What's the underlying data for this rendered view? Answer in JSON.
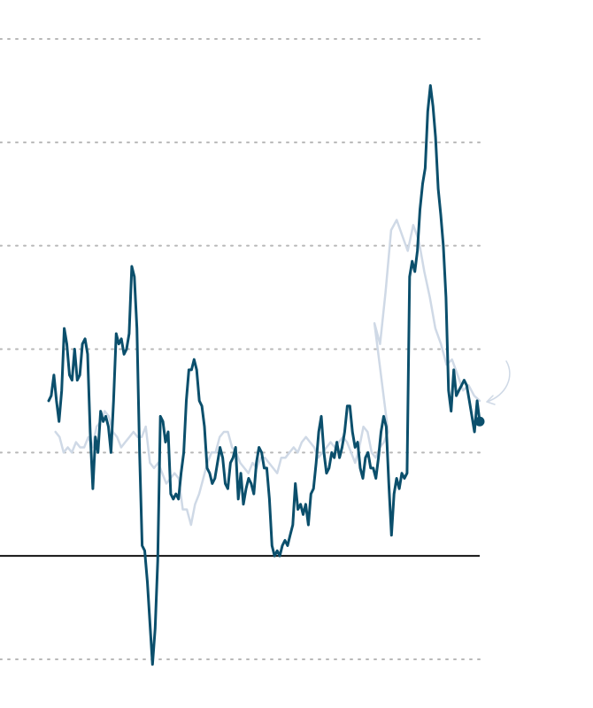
{
  "chart_data": {
    "type": "line",
    "title": "",
    "xlabel": "",
    "ylabel": "",
    "ylim": [
      -1,
      5
    ],
    "xlim": [
      0,
      254
    ],
    "gridlines": [
      -1,
      1,
      2,
      3,
      4,
      5
    ],
    "baseline_value": 0,
    "grid": true,
    "legend": "none",
    "colors": {
      "primary": "#0b4f6c",
      "secondary": "#cfd9e6",
      "baseline": "#111111",
      "grid": "#b8b8b8"
    },
    "series": [
      {
        "role": "primary",
        "values": [
          1.5,
          1.55,
          1.75,
          1.5,
          1.3,
          1.6,
          2.2,
          2.05,
          1.75,
          1.7,
          2.0,
          1.7,
          1.75,
          2.05,
          2.1,
          1.95,
          1.2,
          0.65,
          1.15,
          1.0,
          1.4,
          1.3,
          1.35,
          1.25,
          1.0,
          1.5,
          2.15,
          2.05,
          2.1,
          1.95,
          2.0,
          2.15,
          2.8,
          2.7,
          2.2,
          1.0,
          0.1,
          0.05,
          -0.25,
          -0.65,
          -1.05,
          -0.7,
          -0.05,
          1.35,
          1.3,
          1.1,
          1.2,
          0.6,
          0.55,
          0.6,
          0.55,
          0.8,
          1.0,
          1.5,
          1.8,
          1.8,
          1.9,
          1.8,
          1.5,
          1.45,
          1.25,
          0.85,
          0.8,
          0.7,
          0.75,
          0.9,
          1.05,
          0.95,
          0.7,
          0.65,
          0.9,
          0.95,
          1.05,
          0.55,
          0.8,
          0.5,
          0.65,
          0.75,
          0.7,
          0.6,
          0.9,
          1.05,
          1.0,
          0.85,
          0.85,
          0.55,
          0.1,
          0.0,
          0.05,
          0.0,
          0.1,
          0.15,
          0.1,
          0.2,
          0.3,
          0.7,
          0.45,
          0.5,
          0.4,
          0.5,
          0.3,
          0.6,
          0.65,
          0.9,
          1.2,
          1.35,
          1.0,
          0.8,
          0.85,
          1.0,
          0.95,
          1.1,
          0.95,
          1.05,
          1.2,
          1.45,
          1.45,
          1.2,
          1.05,
          1.1,
          0.85,
          0.75,
          0.95,
          1.0,
          0.85,
          0.85,
          0.75,
          0.95,
          1.2,
          1.35,
          1.25,
          0.7,
          0.2,
          0.6,
          0.75,
          0.65,
          0.8,
          0.75,
          0.8,
          2.7,
          2.85,
          2.75,
          2.95,
          3.35,
          3.6,
          3.75,
          4.3,
          4.55,
          4.35,
          4.05,
          3.55,
          3.3,
          3.0,
          2.5,
          1.6,
          1.4,
          1.8,
          1.55,
          1.6,
          1.65,
          1.7,
          1.65,
          1.5,
          1.35,
          1.2,
          1.5,
          1.3
        ],
        "end_marker": true
      },
      {
        "role": "secondary",
        "values": [
          1.2,
          1.15,
          1.0,
          1.05,
          1.0,
          1.1,
          1.05,
          1.05,
          1.15,
          1.05,
          1.25,
          1.3,
          1.4,
          1.35,
          1.2,
          1.15,
          1.05,
          1.1,
          1.15,
          1.2,
          1.15,
          1.15,
          1.25,
          0.9,
          0.85,
          0.9,
          0.8,
          0.7,
          0.75,
          0.8,
          0.75,
          0.45,
          0.45,
          0.3,
          0.5,
          0.6,
          0.75,
          0.9,
          1.0,
          1.0,
          1.15,
          1.2,
          1.2,
          1.05,
          1.0,
          0.9,
          0.85,
          0.8,
          0.9,
          0.85,
          0.95,
          0.95,
          0.9,
          0.85,
          0.8,
          0.95,
          0.95,
          1.0,
          1.05,
          1.0,
          1.1,
          1.15,
          1.1,
          1.05,
          0.95,
          1.0,
          1.05,
          1.1,
          1.05,
          1.1,
          1.15,
          1.1,
          1.0,
          0.9,
          1.05,
          1.25,
          1.2,
          1.0,
          0.95,
          1.05,
          1.1,
          1.2,
          2.25,
          2.05,
          2.55,
          3.15,
          3.25,
          3.1,
          2.95,
          3.2,
          3.05,
          2.75,
          2.5,
          2.2,
          2.05,
          1.85,
          1.9,
          1.75,
          1.6,
          1.65,
          1.55,
          1.5
        ],
        "x_start": 105
      }
    ]
  },
  "annotation": {
    "icon": "curved-arrow-icon",
    "color": "#cfd9e6"
  }
}
